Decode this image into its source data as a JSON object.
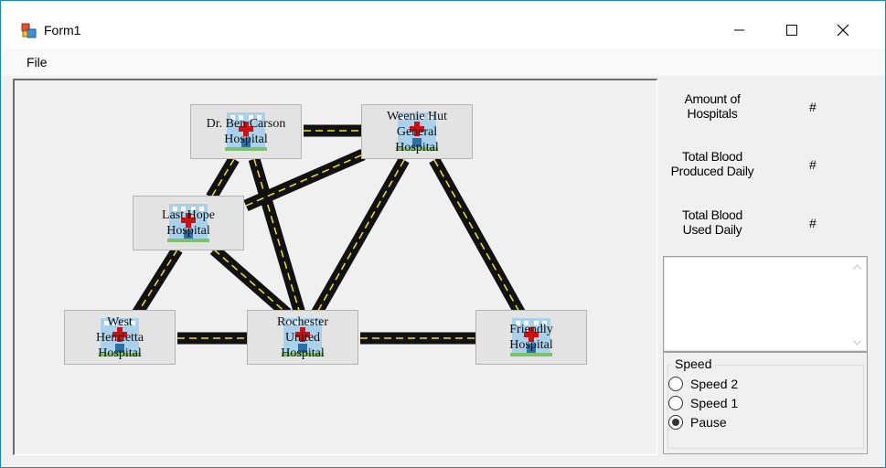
{
  "window": {
    "title": "Form1"
  },
  "menu": {
    "file": "File"
  },
  "hospitals": [
    {
      "label": "Dr. Ben Carson\nHospital"
    },
    {
      "label": "Weenie Hut\nGeneral\nHospital"
    },
    {
      "label": "Last Hope\nHospital"
    },
    {
      "label": "West\nHenrietta\nHospital"
    },
    {
      "label": "Rochester\nUnited\nHospital"
    },
    {
      "label": "Friendly\nHospital"
    }
  ],
  "stats": {
    "amount_label": "Amount of\nHospitals",
    "amount_value": "#",
    "produced_label": "Total Blood\nProduced Daily",
    "produced_value": "#",
    "used_label": "Total Blood\nUsed Daily",
    "used_value": "#"
  },
  "log": {
    "value": ""
  },
  "speed": {
    "title": "Speed",
    "options": [
      {
        "label": "Speed 2",
        "checked": false
      },
      {
        "label": "Speed 1",
        "checked": false
      },
      {
        "label": "Pause",
        "checked": true
      }
    ]
  },
  "colors": {
    "road": "#111111",
    "road_dash": "#f5e400",
    "cross": "#d01010",
    "building": "#8cc8ef",
    "window_border": "#1883d7"
  }
}
